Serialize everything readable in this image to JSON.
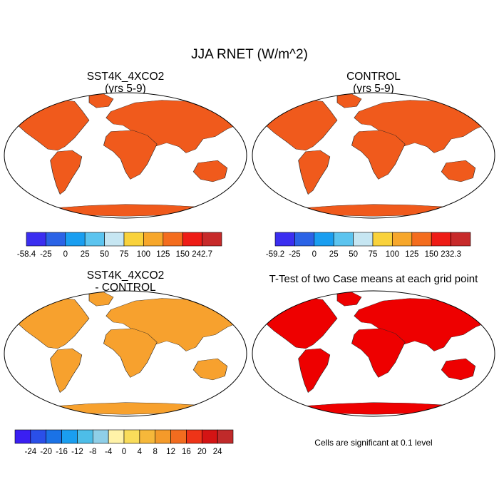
{
  "title": "JJA RNET (W/m^2)",
  "panels": [
    {
      "title": "SST4K_4XCO2",
      "subtitle": "(yrs 5-9)",
      "colorbar": {
        "colors": [
          "#3b2ef0",
          "#2b63e6",
          "#1a9ef0",
          "#5cc4ef",
          "#c6e6f2",
          "#f9d23c",
          "#f7a72b",
          "#f46d1e",
          "#ee1c16",
          "#c72a2a"
        ],
        "labels": [
          "-58.4",
          "-25",
          "0",
          "25",
          "50",
          "75",
          "100",
          "125",
          "150",
          "242.7"
        ]
      }
    },
    {
      "title": "CONTROL",
      "subtitle": "(yrs 5-9)",
      "colorbar": {
        "colors": [
          "#3b2ef0",
          "#2b63e6",
          "#1a9ef0",
          "#5cc4ef",
          "#c6e6f2",
          "#f9d23c",
          "#f7a72b",
          "#f46d1e",
          "#ee1c16",
          "#c72a2a"
        ],
        "labels": [
          "-59.2",
          "-25",
          "0",
          "25",
          "50",
          "75",
          "100",
          "125",
          "150",
          "232.3"
        ]
      }
    },
    {
      "title": "SST4K_4XCO2",
      "subtitle": "- CONTROL",
      "colorbar": {
        "colors": [
          "#3a1ff2",
          "#2a4fe8",
          "#1a72e6",
          "#1a9ef0",
          "#4dbde8",
          "#8fcfe8",
          "#fff2a8",
          "#f9dc5a",
          "#f6b83a",
          "#f49a2a",
          "#f26c1f",
          "#ee3418",
          "#d41414",
          "#c02a2a"
        ],
        "labels": [
          "-24",
          "-20",
          "-16",
          "-12",
          "-8",
          "-4",
          "0",
          "4",
          "8",
          "12",
          "16",
          "20",
          "24"
        ]
      }
    },
    {
      "title": "T-Test of two Case means at each grid point",
      "footnote": "Cells are significant at 0.1 level"
    }
  ]
}
